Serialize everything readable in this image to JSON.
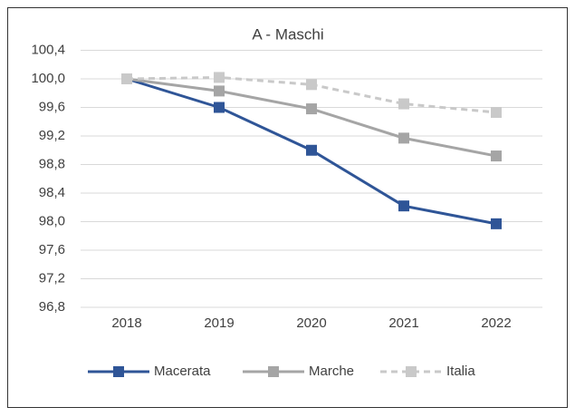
{
  "chart_data": {
    "type": "line",
    "title": "A - Maschi",
    "categories": [
      "2018",
      "2019",
      "2020",
      "2021",
      "2022"
    ],
    "series": [
      {
        "name": "Macerata",
        "color": "#2f5597",
        "values": [
          100.0,
          99.6,
          99.0,
          98.22,
          97.97
        ]
      },
      {
        "name": "Marche",
        "color": "#a5a5a5",
        "values": [
          100.0,
          99.83,
          99.58,
          99.17,
          98.92
        ]
      },
      {
        "name": "Italia",
        "color": "#c9c9c9",
        "dashed": true,
        "values": [
          100.0,
          100.02,
          99.92,
          99.65,
          99.53
        ]
      }
    ],
    "ylim": [
      96.8,
      100.4
    ],
    "yticks": [
      {
        "value": 96.8,
        "label": "96,8"
      },
      {
        "value": 97.2,
        "label": "97,2"
      },
      {
        "value": 97.6,
        "label": "97,6"
      },
      {
        "value": 98.0,
        "label": "98,0"
      },
      {
        "value": 98.4,
        "label": "98,4"
      },
      {
        "value": 98.8,
        "label": "98,8"
      },
      {
        "value": 99.2,
        "label": "99,2"
      },
      {
        "value": 99.6,
        "label": "99,6"
      },
      {
        "value": 100.0,
        "label": "100,0"
      },
      {
        "value": 100.4,
        "label": "100,4"
      }
    ],
    "grid": true,
    "legend": "bottom"
  }
}
